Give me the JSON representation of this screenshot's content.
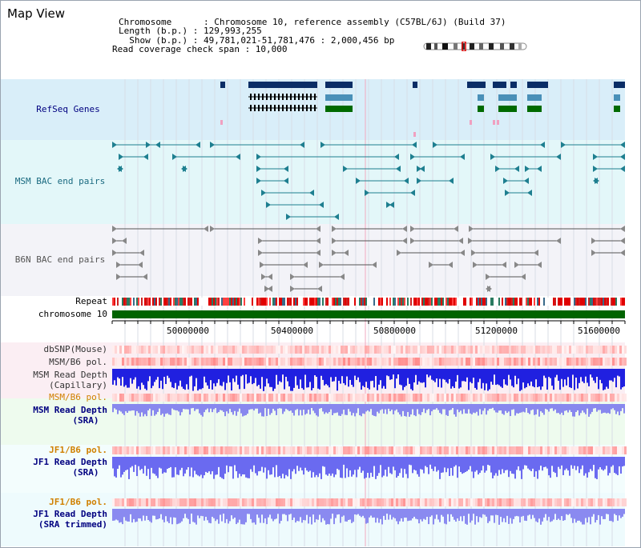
{
  "title": "Map View",
  "info": {
    "line1": "Chromosome      : Chromosome 10, reference assembly (C57BL/6J) (Build 37)",
    "line2": "Length (b.p.) : 129,993,255",
    "line3": "  Show (b.p.) : 49,781,021-51,781,476 : 2,000,456 bp",
    "line4": "Read coverage check span : 10,000"
  },
  "tracks": {
    "refseq": "RefSeq Genes",
    "msm_bac": "MSM BAC end pairs",
    "b6n_bac": "B6N BAC end pairs",
    "repeat": "Repeat",
    "chromosome": "chromosome 10",
    "dbsnp": "dbSNP(Mouse)",
    "msm_b6_pol": "MSM/B6 pol.",
    "msm_read_cap_1": "MSM Read Depth",
    "msm_read_cap_2": "(Capillary)",
    "msm_b6_pol_2": "MSM/B6 pol.",
    "msm_read_sra_1": "MSM Read Depth",
    "msm_read_sra_2": "(SRA)",
    "jf1_b6_pol": "JF1/B6 pol.",
    "jf1_read_1": "JF1 Read Depth",
    "jf1_read_2": "(SRA)",
    "jf1_b6_pol_2": "JF1/B6 pol.",
    "jf1_trim_1": "JF1 Read Depth",
    "jf1_trim_2": "(SRA trimmed)"
  },
  "axis": {
    "ticks": [
      "50000000",
      "50400000",
      "50800000",
      "51200000",
      "51600000"
    ]
  },
  "colors": {
    "navy_label": "#000080",
    "teal_label": "#1a6a80",
    "gray_label": "#555555",
    "orange_label": "#d08000",
    "refseq_bg": "#dceefa",
    "msm_bg": "#e4f8fa",
    "b6n_bg": "#f2f2f8",
    "chromosome_green": "#006400"
  }
}
